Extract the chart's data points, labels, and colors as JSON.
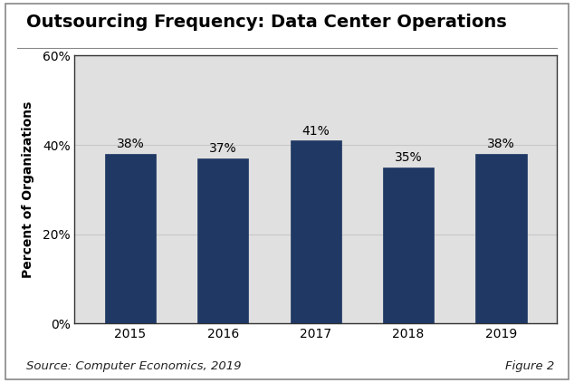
{
  "title": "Outsourcing Frequency: Data Center Operations",
  "categories": [
    "2015",
    "2016",
    "2017",
    "2018",
    "2019"
  ],
  "values": [
    38,
    37,
    41,
    35,
    38
  ],
  "labels": [
    "38%",
    "37%",
    "41%",
    "35%",
    "38%"
  ],
  "bar_color": "#1F3864",
  "bar_edgecolor": "#1F3864",
  "plot_bg_color": "#E0E0E0",
  "fig_bg_color": "#FFFFFF",
  "ylabel": "Percent of Organizations",
  "ylim": [
    0,
    60
  ],
  "yticks": [
    0,
    20,
    40,
    60
  ],
  "ytick_labels": [
    "0%",
    "20%",
    "40%",
    "60%"
  ],
  "source_text": "Source: Computer Economics, 2019",
  "figure_text": "Figure 2",
  "title_fontsize": 14,
  "axis_fontsize": 10,
  "label_fontsize": 10,
  "source_fontsize": 9.5,
  "border_color": "#333333",
  "grid_color": "#C8C8C8",
  "bar_width": 0.55
}
